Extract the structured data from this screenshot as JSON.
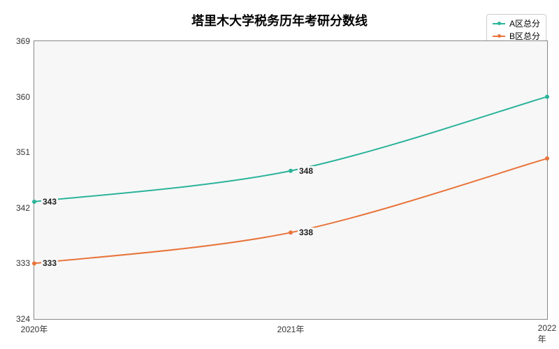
{
  "chart": {
    "type": "line",
    "title": "塔里木大学税务历年考研分数线",
    "title_fontsize": 18,
    "background_color": "#ffffff",
    "plot_background_color": "#f7f7f7",
    "border_color": "#888888",
    "x": {
      "categories": [
        "2020年",
        "2021年",
        "2022年"
      ],
      "label_fontsize": 12
    },
    "y": {
      "ticks": [
        324,
        333,
        342,
        351,
        360,
        369
      ],
      "min": 324,
      "max": 369,
      "label_fontsize": 12
    },
    "series": [
      {
        "name": "A区总分",
        "color": "#2bb39a",
        "line_width": 2,
        "marker": "circle",
        "values": [
          343,
          348,
          360
        ]
      },
      {
        "name": "B区总分",
        "color": "#e8743b",
        "line_width": 2,
        "marker": "circle",
        "values": [
          333,
          338,
          350
        ]
      }
    ],
    "data_label_fontsize": 12,
    "data_label_color": "#222222",
    "legend": {
      "position": "top-right",
      "border_color": "#cccccc",
      "background": "#ffffff",
      "fontsize": 12
    }
  }
}
